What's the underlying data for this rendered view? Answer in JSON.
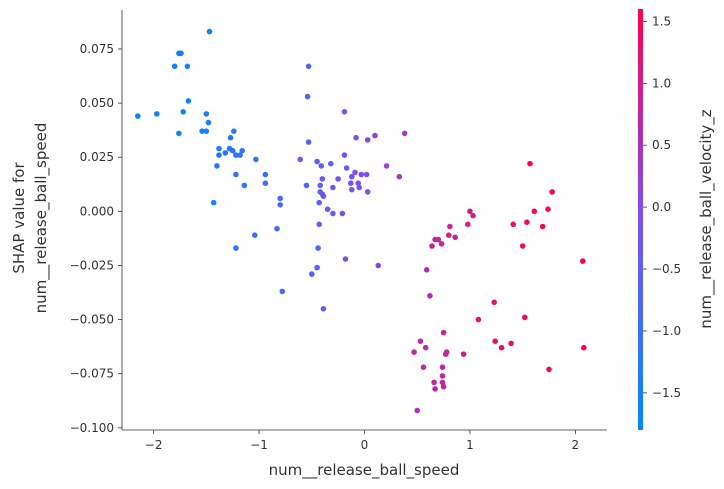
{
  "chart_data": {
    "type": "scatter",
    "xlabel": "num__release_ball_speed",
    "ylabel_lines": [
      "SHAP value for",
      "num__release_ball_speed"
    ],
    "colorbar_label": "num__release_ball_velocity_z",
    "xlim": [
      -2.3,
      2.3
    ],
    "ylim": [
      -0.101,
      0.093
    ],
    "x_ticks": [
      -2,
      -1,
      0,
      1,
      2
    ],
    "x_tick_labels": [
      "−2",
      "−1",
      "0",
      "1",
      "2"
    ],
    "y_ticks": [
      0.075,
      0.05,
      0.025,
      0.0,
      -0.025,
      -0.05,
      -0.075,
      -0.1
    ],
    "y_tick_labels": [
      "0.075",
      "0.050",
      "0.025",
      "0.000",
      "−0.025",
      "−0.050",
      "−0.075",
      "−0.100"
    ],
    "color_range": [
      -1.8,
      1.6
    ],
    "color_ticks": [
      1.5,
      1.0,
      0.5,
      0.0,
      -0.5,
      -1.0,
      -1.5
    ],
    "color_tick_labels": [
      "1.5",
      "1.0",
      "0.5",
      "0.0",
      "−0.5",
      "−1.0",
      "−1.5"
    ],
    "colormap": [
      "#008afb",
      "#7c52ee",
      "#ff0051"
    ],
    "grid": false,
    "points": [
      [
        -1.47,
        0.083,
        -1.6
      ],
      [
        -1.76,
        0.073,
        -1.6
      ],
      [
        -1.74,
        0.073,
        -1.6
      ],
      [
        -1.8,
        0.067,
        -1.6
      ],
      [
        -1.68,
        0.067,
        -1.5
      ],
      [
        -1.67,
        0.051,
        -1.5
      ],
      [
        -1.72,
        0.046,
        -1.5
      ],
      [
        -2.15,
        0.044,
        -1.7
      ],
      [
        -1.97,
        0.045,
        -1.6
      ],
      [
        -1.5,
        0.045,
        -1.5
      ],
      [
        -1.48,
        0.041,
        -1.5
      ],
      [
        -1.54,
        0.037,
        -1.5
      ],
      [
        -1.5,
        0.037,
        -1.5
      ],
      [
        -1.76,
        0.036,
        -1.6
      ],
      [
        -1.24,
        0.037,
        -1.2
      ],
      [
        -1.27,
        0.034,
        -1.2
      ],
      [
        -1.38,
        0.029,
        -1.3
      ],
      [
        -1.28,
        0.029,
        -1.2
      ],
      [
        -1.25,
        0.028,
        -1.2
      ],
      [
        -1.16,
        0.028,
        -1.1
      ],
      [
        -1.18,
        0.026,
        -1.1
      ],
      [
        -1.32,
        0.027,
        -1.2
      ],
      [
        -1.38,
        0.026,
        -1.3
      ],
      [
        -1.22,
        0.026,
        -1.2
      ],
      [
        -1.03,
        0.024,
        -1.0
      ],
      [
        -1.4,
        0.021,
        -1.3
      ],
      [
        -1.22,
        0.017,
        -1.2
      ],
      [
        -0.94,
        0.017,
        -0.9
      ],
      [
        -0.94,
        0.013,
        -0.9
      ],
      [
        -1.14,
        0.012,
        -1.1
      ],
      [
        -1.43,
        0.004,
        -1.4
      ],
      [
        -0.8,
        0.006,
        -0.8
      ],
      [
        -0.8,
        0.003,
        -0.8
      ],
      [
        -0.83,
        -0.008,
        -0.8
      ],
      [
        -1.04,
        -0.011,
        -1.0
      ],
      [
        -1.22,
        -0.017,
        -1.1
      ],
      [
        -0.78,
        -0.037,
        -0.9
      ],
      [
        -0.53,
        0.067,
        -0.7
      ],
      [
        -0.54,
        0.053,
        -0.7
      ],
      [
        -0.19,
        0.046,
        -0.4
      ],
      [
        -0.61,
        0.024,
        -0.4
      ],
      [
        -0.53,
        0.032,
        -0.6
      ],
      [
        -0.45,
        0.023,
        -0.5
      ],
      [
        -0.19,
        0.026,
        -0.3
      ],
      [
        -0.41,
        0.021,
        -0.4
      ],
      [
        -0.32,
        0.022,
        -0.4
      ],
      [
        -0.17,
        0.02,
        -0.2
      ],
      [
        -0.09,
        0.018,
        -0.1
      ],
      [
        -0.03,
        0.017,
        -0.1
      ],
      [
        0.02,
        0.017,
        0.0
      ],
      [
        -0.12,
        0.016,
        -0.2
      ],
      [
        -0.25,
        0.015,
        -0.2
      ],
      [
        -0.4,
        0.015,
        -0.4
      ],
      [
        -0.13,
        0.013,
        -0.2
      ],
      [
        -0.06,
        0.013,
        -0.1
      ],
      [
        -0.55,
        0.012,
        -0.6
      ],
      [
        -0.42,
        0.012,
        -0.4
      ],
      [
        -0.42,
        0.009,
        -0.4
      ],
      [
        -0.39,
        0.007,
        -0.4
      ],
      [
        -0.3,
        0.011,
        -0.3
      ],
      [
        -0.12,
        0.01,
        -0.2
      ],
      [
        -0.05,
        0.011,
        -0.1
      ],
      [
        0.03,
        0.009,
        0.0
      ],
      [
        -0.43,
        0.004,
        -0.5
      ],
      [
        -0.4,
        0.008,
        -0.4
      ],
      [
        -0.35,
        0.001,
        -0.4
      ],
      [
        -0.21,
        -0.001,
        -0.2
      ],
      [
        -0.43,
        -0.006,
        -0.5
      ],
      [
        -0.3,
        -0.001,
        -0.3
      ],
      [
        -0.44,
        -0.017,
        -0.5
      ],
      [
        -0.45,
        -0.026,
        -0.5
      ],
      [
        -0.5,
        -0.029,
        -0.5
      ],
      [
        -0.18,
        -0.022,
        -0.3
      ],
      [
        -0.39,
        -0.045,
        -0.5
      ],
      [
        0.38,
        0.036,
        0.3
      ],
      [
        0.1,
        0.035,
        0.2
      ],
      [
        0.03,
        0.033,
        0.1
      ],
      [
        -0.08,
        0.034,
        -0.2
      ],
      [
        0.21,
        0.021,
        0.2
      ],
      [
        0.33,
        0.016,
        0.3
      ],
      [
        0.13,
        -0.025,
        0.1
      ],
      [
        0.5,
        -0.092,
        0.6
      ],
      [
        0.53,
        -0.06,
        0.7
      ],
      [
        0.47,
        -0.065,
        0.7
      ],
      [
        0.58,
        -0.063,
        0.7
      ],
      [
        0.66,
        -0.079,
        0.8
      ],
      [
        0.67,
        -0.082,
        0.8
      ],
      [
        0.74,
        -0.079,
        0.8
      ],
      [
        0.75,
        -0.081,
        0.8
      ],
      [
        0.74,
        -0.076,
        0.8
      ],
      [
        0.74,
        -0.072,
        0.8
      ],
      [
        0.56,
        -0.072,
        0.7
      ],
      [
        0.77,
        -0.066,
        0.8
      ],
      [
        0.78,
        -0.065,
        0.8
      ],
      [
        0.94,
        -0.066,
        0.9
      ],
      [
        0.75,
        -0.056,
        0.8
      ],
      [
        0.62,
        -0.039,
        0.7
      ],
      [
        0.59,
        -0.027,
        0.7
      ],
      [
        0.64,
        -0.016,
        0.8
      ],
      [
        0.67,
        -0.013,
        0.8
      ],
      [
        0.7,
        -0.013,
        0.8
      ],
      [
        0.73,
        -0.015,
        0.8
      ],
      [
        0.8,
        -0.011,
        0.9
      ],
      [
        0.86,
        -0.012,
        0.9
      ],
      [
        0.81,
        -0.007,
        0.9
      ],
      [
        0.98,
        -0.006,
        1.0
      ],
      [
        1.0,
        0.0,
        1.0
      ],
      [
        1.03,
        -0.002,
        1.0
      ],
      [
        1.08,
        -0.05,
        1.1
      ],
      [
        1.23,
        -0.042,
        1.2
      ],
      [
        1.24,
        -0.06,
        1.3
      ],
      [
        1.3,
        -0.063,
        1.3
      ],
      [
        1.39,
        -0.061,
        1.3
      ],
      [
        1.52,
        -0.049,
        1.4
      ],
      [
        1.41,
        -0.006,
        1.3
      ],
      [
        1.5,
        -0.016,
        1.4
      ],
      [
        1.57,
        0.022,
        1.5
      ],
      [
        1.54,
        -0.005,
        1.4
      ],
      [
        1.61,
        0.0,
        1.5
      ],
      [
        1.69,
        -0.007,
        1.5
      ],
      [
        1.74,
        0.001,
        1.5
      ],
      [
        1.78,
        0.009,
        1.5
      ],
      [
        1.75,
        -0.073,
        1.5
      ],
      [
        2.07,
        -0.023,
        1.6
      ],
      [
        2.08,
        -0.063,
        1.6
      ]
    ]
  }
}
